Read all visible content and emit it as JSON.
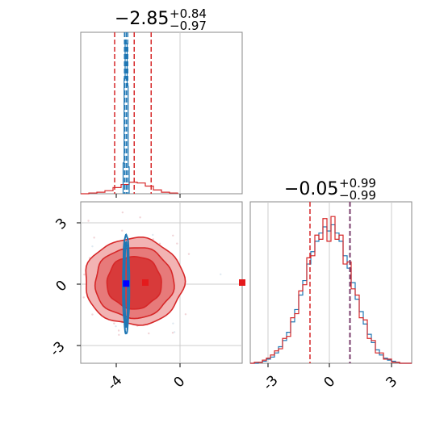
{
  "chart_data": [
    {
      "panel": "marginal-x",
      "type": "histogram",
      "title": {
        "main": "−2.85",
        "sup": "+0.84",
        "sub": "−0.97"
      },
      "xlim": [
        -5.5,
        2.5
      ],
      "ticks": [
        -4,
        0
      ],
      "series": [
        {
          "color": "#d62728",
          "median": -2.85,
          "quantiles": [
            -3.82,
            -2.01
          ],
          "bin_edges": [
            -5.5,
            -5.1,
            -4.7,
            -4.3,
            -3.9,
            -3.5,
            -3.1,
            -2.7,
            -2.3,
            -1.9,
            -1.5,
            -1.1,
            -0.7
          ],
          "counts": [
            0,
            1,
            2,
            4,
            8,
            12,
            15,
            14,
            10,
            5,
            2,
            1
          ]
        },
        {
          "color": "#1f77b4",
          "median": -3.25,
          "quantiles": [
            -3.33,
            -3.17
          ],
          "bin_edges": [
            -3.4,
            -3.35,
            -3.3,
            -3.25,
            -3.2,
            -3.15,
            -3.1
          ],
          "counts": [
            40,
            150,
            200,
            195,
            140,
            35
          ]
        }
      ]
    },
    {
      "panel": "marginal-y",
      "type": "histogram",
      "title": {
        "main": "−0.05",
        "sup": "+0.99",
        "sub": "−0.99"
      },
      "xlim": [
        -4,
        4
      ],
      "ticks": [
        -3,
        0,
        3
      ],
      "quantile_lines": {
        "red": [
          -1.04,
          0.94
        ],
        "purple": 0.94
      },
      "bin_edges": [
        -4.0,
        -3.8,
        -3.6,
        -3.4,
        -3.2,
        -3.0,
        -2.8,
        -2.6,
        -2.4,
        -2.2,
        -2.0,
        -1.8,
        -1.6,
        -1.4,
        -1.2,
        -1.0,
        -0.8,
        -0.6,
        -0.4,
        -0.2,
        0.0,
        0.2,
        0.4,
        0.6,
        0.8,
        1.0,
        1.2,
        1.4,
        1.6,
        1.8,
        2.0,
        2.2,
        2.4,
        2.6,
        2.8,
        3.0,
        3.2,
        3.4,
        3.6,
        3.8,
        4.0
      ],
      "series": [
        {
          "color": "#1f77b4",
          "counts": [
            0,
            0,
            1,
            2,
            4,
            6,
            10,
            16,
            22,
            30,
            40,
            52,
            66,
            80,
            96,
            108,
            118,
            126,
            132,
            128,
            134,
            126,
            118,
            104,
            92,
            78,
            62,
            50,
            38,
            28,
            20,
            13,
            8,
            5,
            3,
            2,
            1,
            0,
            0,
            0
          ]
        },
        {
          "color": "#d62728",
          "counts": [
            0,
            1,
            1,
            3,
            5,
            8,
            12,
            14,
            24,
            26,
            44,
            48,
            70,
            76,
            102,
            104,
            124,
            120,
            140,
            118,
            142,
            120,
            124,
            96,
            98,
            72,
            66,
            44,
            42,
            24,
            22,
            10,
            10,
            4,
            4,
            1,
            1,
            0,
            0,
            0
          ]
        }
      ]
    },
    {
      "panel": "joint",
      "type": "contour",
      "xlim": [
        -5.5,
        2.5
      ],
      "ylim": [
        -4,
        4
      ],
      "xticks": [
        -4,
        0
      ],
      "yticks": [
        -3,
        0,
        3
      ],
      "red_markers": [
        {
          "x": -2.3,
          "y": 0.0
        },
        {
          "x": 2.5,
          "y": 0.0
        }
      ],
      "blue_marker": {
        "x": -3.25,
        "y": -0.05
      },
      "red_contours": [
        {
          "level": "outer",
          "center": [
            -2.85,
            0.05
          ],
          "rx": 2.45,
          "ry": 2.15
        },
        {
          "level": "middle",
          "center": [
            -2.85,
            0.0
          ],
          "rx": 1.95,
          "ry": 1.75
        },
        {
          "level": "inner",
          "center": [
            -2.85,
            0.0
          ],
          "rx": 1.35,
          "ry": 1.3
        }
      ],
      "blue_contours": [
        {
          "level": "outer",
          "center": [
            -3.25,
            -0.05
          ],
          "rx": 0.16,
          "ry": 2.45
        },
        {
          "level": "inner",
          "center": [
            -3.25,
            -0.05
          ],
          "rx": 0.08,
          "ry": 2.1
        }
      ]
    }
  ]
}
